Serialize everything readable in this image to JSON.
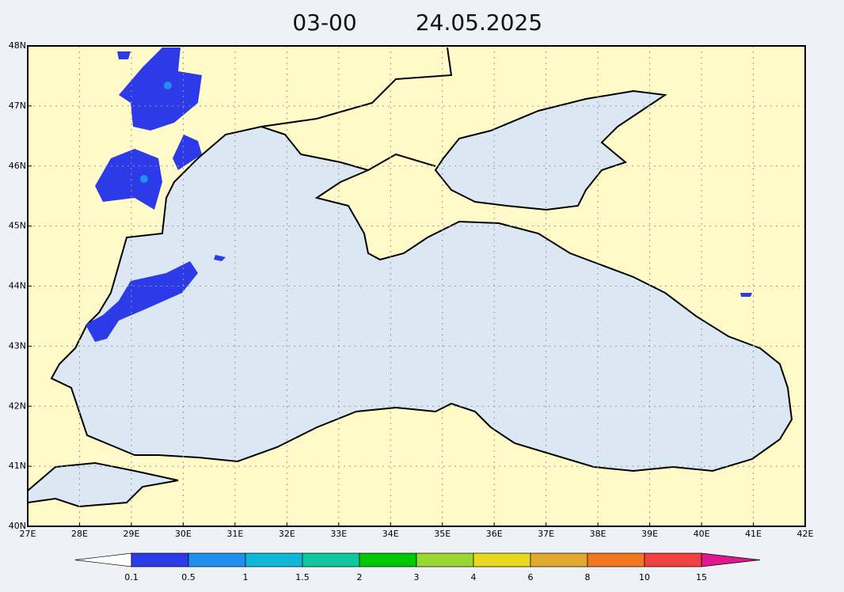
{
  "title": {
    "time": "03-00",
    "date": "24.05.2025"
  },
  "map": {
    "lonlim": [
      27,
      42
    ],
    "latlim": [
      40,
      48
    ],
    "lon_ticks": [
      {
        "value": 27,
        "label": "27E"
      },
      {
        "value": 28,
        "label": "28E"
      },
      {
        "value": 29,
        "label": "29E"
      },
      {
        "value": 30,
        "label": "30E"
      },
      {
        "value": 31,
        "label": "31E"
      },
      {
        "value": 32,
        "label": "32E"
      },
      {
        "value": 33,
        "label": "33E"
      },
      {
        "value": 34,
        "label": "34E"
      },
      {
        "value": 35,
        "label": "35E"
      },
      {
        "value": 36,
        "label": "36E"
      },
      {
        "value": 37,
        "label": "37E"
      },
      {
        "value": 38,
        "label": "38E"
      },
      {
        "value": 39,
        "label": "39E"
      },
      {
        "value": 40,
        "label": "40E"
      },
      {
        "value": 41,
        "label": "41E"
      },
      {
        "value": 42,
        "label": "42E"
      }
    ],
    "lat_ticks": [
      {
        "value": 40,
        "label": "40N"
      },
      {
        "value": 41,
        "label": "41N"
      },
      {
        "value": 42,
        "label": "42N"
      },
      {
        "value": 43,
        "label": "43N"
      },
      {
        "value": 44,
        "label": "44N"
      },
      {
        "value": 45,
        "label": "45N"
      },
      {
        "value": 46,
        "label": "46N"
      },
      {
        "value": 47,
        "label": "47N"
      },
      {
        "value": 48,
        "label": "48N"
      }
    ],
    "grid": true
  },
  "legend": {
    "levels": [
      0.1,
      0.5,
      1,
      1.5,
      2,
      3,
      4,
      6,
      8,
      10,
      15
    ],
    "under_color": "#ffffff",
    "colors": [
      "#2d3ae8",
      "#1e90f0",
      "#10b8d8",
      "#10c8a0",
      "#00c800",
      "#98d830",
      "#e8d820",
      "#e0a830",
      "#f07820",
      "#f04040"
    ],
    "over_color": "#e01890"
  }
}
